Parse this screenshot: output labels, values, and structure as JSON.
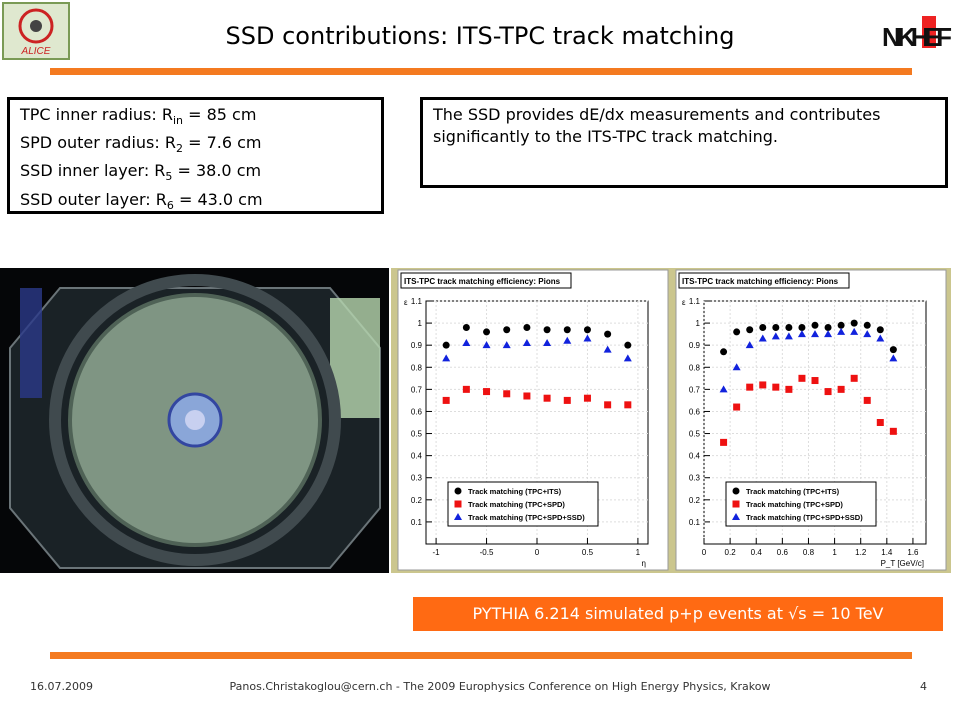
{
  "logos": {
    "left": "ALICE",
    "right": "NIKHEF"
  },
  "title": "SSD contributions: ITS-TPC track matching",
  "info_box": {
    "lines": [
      {
        "text": "TPC inner radius: R",
        "sub": "in",
        "rest": " = 85 cm"
      },
      {
        "text": "SPD outer radius: R",
        "sub": "2",
        "rest": " = 7.6 cm"
      },
      {
        "text": "SSD inner layer: R",
        "sub": "5",
        "rest": " = 38.0 cm"
      },
      {
        "text": "SSD outer layer: R",
        "sub": "6",
        "rest": " = 43.0 cm"
      }
    ]
  },
  "note_box": "The SSD provides dE/dx measurements and contributes significantly to the ITS-TPC track matching.",
  "caption": "PYTHIA 6.214 simulated p+p events at √s = 10 TeV",
  "footer": {
    "date": "16.07.2009",
    "text": "Panos.Christakoglou@cern.ch - The 2009 Europhysics Conference on High Energy Physics, Krakow",
    "page": "4"
  },
  "chart_data": [
    {
      "type": "scatter",
      "title": "ITS-TPC track matching efficiency: Pions",
      "xlabel": "η",
      "ylabel": "ε",
      "x": [
        -0.9,
        -0.7,
        -0.5,
        -0.3,
        -0.1,
        0.1,
        0.3,
        0.5,
        0.7,
        0.9
      ],
      "xlim": [
        -1.1,
        1.1
      ],
      "xticks": [
        -1,
        -0.5,
        0,
        0.5,
        1
      ],
      "ylim": [
        0,
        1.1
      ],
      "yticks": [
        0.1,
        0.2,
        0.3,
        0.4,
        0.5,
        0.6,
        0.7,
        0.8,
        0.9,
        1,
        1.1
      ],
      "grid": true,
      "legend": "bottom",
      "series": [
        {
          "name": "Track matching (TPC+ITS)",
          "color": "#000000",
          "marker": "circle",
          "values": [
            0.9,
            0.98,
            0.96,
            0.97,
            0.98,
            0.97,
            0.97,
            0.97,
            0.95,
            0.9
          ]
        },
        {
          "name": "Track matching (TPC+SPD)",
          "color": "#ee1111",
          "marker": "square",
          "values": [
            0.65,
            0.7,
            0.69,
            0.68,
            0.67,
            0.66,
            0.65,
            0.66,
            0.63,
            0.63
          ]
        },
        {
          "name": "Track matching (TPC+SPD+SSD)",
          "color": "#1122dd",
          "marker": "triangle",
          "values": [
            0.84,
            0.91,
            0.9,
            0.9,
            0.91,
            0.91,
            0.92,
            0.93,
            0.88,
            0.84
          ]
        }
      ]
    },
    {
      "type": "scatter",
      "title": "ITS-TPC track matching efficiency: Pions",
      "xlabel": "P_T [GeV/c]",
      "ylabel": "ε",
      "x": [
        0.15,
        0.25,
        0.35,
        0.45,
        0.55,
        0.65,
        0.75,
        0.85,
        0.95,
        1.05,
        1.15,
        1.25,
        1.35,
        1.45
      ],
      "xlim": [
        0,
        1.7
      ],
      "xticks": [
        0,
        0.2,
        0.4,
        0.6,
        0.8,
        1,
        1.2,
        1.4,
        1.6
      ],
      "ylim": [
        0,
        1.1
      ],
      "yticks": [
        0.1,
        0.2,
        0.3,
        0.4,
        0.5,
        0.6,
        0.7,
        0.8,
        0.9,
        1,
        1.1
      ],
      "grid": true,
      "legend": "bottom",
      "series": [
        {
          "name": "Track matching (TPC+ITS)",
          "color": "#000000",
          "marker": "circle",
          "values": [
            0.87,
            0.96,
            0.97,
            0.98,
            0.98,
            0.98,
            0.98,
            0.99,
            0.98,
            0.99,
            1.0,
            0.99,
            0.97,
            0.88
          ]
        },
        {
          "name": "Track matching (TPC+SPD)",
          "color": "#ee1111",
          "marker": "square",
          "values": [
            0.46,
            0.62,
            0.71,
            0.72,
            0.71,
            0.7,
            0.75,
            0.74,
            0.69,
            0.7,
            0.75,
            0.65,
            0.55,
            0.51
          ]
        },
        {
          "name": "Track matching (TPC+SPD+SSD)",
          "color": "#1122dd",
          "marker": "triangle",
          "values": [
            0.7,
            0.8,
            0.9,
            0.93,
            0.94,
            0.94,
            0.95,
            0.95,
            0.95,
            0.96,
            0.96,
            0.95,
            0.93,
            0.84
          ]
        }
      ]
    }
  ]
}
